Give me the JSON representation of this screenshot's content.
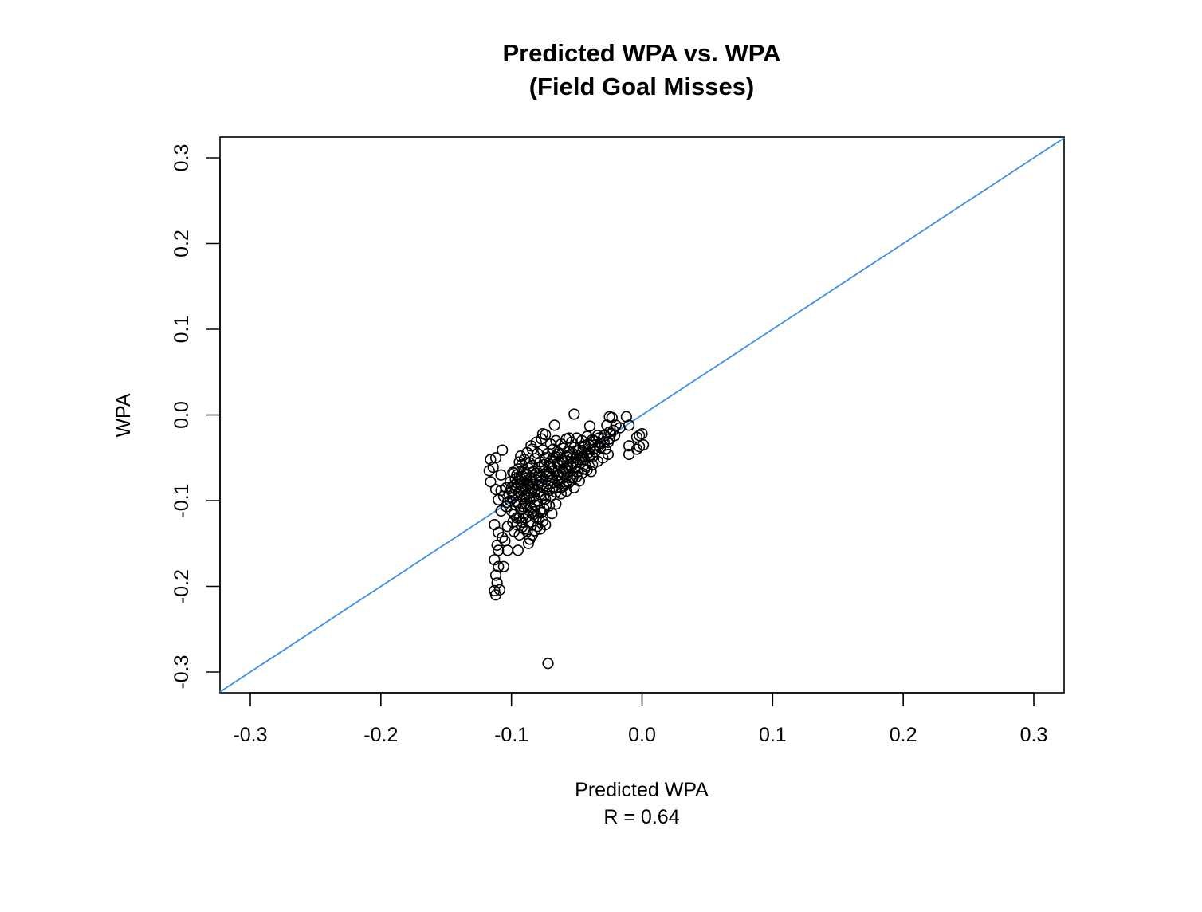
{
  "chart_data": {
    "type": "scatter",
    "title": "Predicted WPA vs. WPA",
    "subtitle": "(Field Goal Misses)",
    "xlabel": "Predicted WPA",
    "xlabel_note": "R = 0.64",
    "ylabel": "WPA",
    "xlim": [
      -0.3,
      0.3
    ],
    "ylim": [
      -0.3,
      0.3
    ],
    "x_ticks": [
      "-0.3",
      "-0.2",
      "-0.1",
      "0.0",
      "0.1",
      "0.2",
      "0.3"
    ],
    "y_ticks": [
      "-0.3",
      "-0.2",
      "-0.1",
      "0.0",
      "0.1",
      "0.2",
      "0.3"
    ],
    "grid": false,
    "reference_line": {
      "slope": 1,
      "intercept": 0,
      "color": "#3a8ee6"
    },
    "marker_color": "#000000",
    "points": [
      [
        -0.072,
        -0.29
      ],
      [
        -0.112,
        -0.21
      ],
      [
        -0.113,
        -0.205
      ],
      [
        -0.109,
        -0.204
      ],
      [
        -0.111,
        -0.196
      ],
      [
        -0.112,
        -0.187
      ],
      [
        -0.11,
        -0.177
      ],
      [
        -0.106,
        -0.177
      ],
      [
        -0.113,
        -0.169
      ],
      [
        -0.11,
        -0.158
      ],
      [
        -0.103,
        -0.158
      ],
      [
        -0.095,
        -0.158
      ],
      [
        -0.111,
        -0.152
      ],
      [
        -0.105,
        -0.147
      ],
      [
        -0.087,
        -0.15
      ],
      [
        -0.113,
        -0.128
      ],
      [
        -0.11,
        -0.137
      ],
      [
        -0.107,
        -0.143
      ],
      [
        -0.103,
        -0.13
      ],
      [
        -0.098,
        -0.136
      ],
      [
        -0.094,
        -0.14
      ],
      [
        -0.09,
        -0.133
      ],
      [
        -0.086,
        -0.145
      ],
      [
        -0.082,
        -0.135
      ],
      [
        -0.078,
        -0.133
      ],
      [
        -0.074,
        -0.128
      ],
      [
        -0.099,
        -0.125
      ],
      [
        -0.096,
        -0.12
      ],
      [
        -0.092,
        -0.125
      ],
      [
        -0.089,
        -0.12
      ],
      [
        -0.085,
        -0.125
      ],
      [
        -0.081,
        -0.12
      ],
      [
        -0.077,
        -0.114
      ],
      [
        -0.073,
        -0.104
      ],
      [
        -0.069,
        -0.115
      ],
      [
        -0.066,
        -0.104
      ],
      [
        -0.108,
        -0.112
      ],
      [
        -0.104,
        -0.107
      ],
      [
        -0.101,
        -0.1
      ],
      [
        -0.097,
        -0.105
      ],
      [
        -0.093,
        -0.11
      ],
      [
        -0.089,
        -0.103
      ],
      [
        -0.085,
        -0.108
      ],
      [
        -0.081,
        -0.1
      ],
      [
        -0.078,
        -0.112
      ],
      [
        -0.11,
        -0.099
      ],
      [
        -0.106,
        -0.095
      ],
      [
        -0.103,
        -0.102
      ],
      [
        -0.099,
        -0.097
      ],
      [
        -0.095,
        -0.093
      ],
      [
        -0.091,
        -0.098
      ],
      [
        -0.087,
        -0.092
      ],
      [
        -0.083,
        -0.096
      ],
      [
        -0.079,
        -0.09
      ],
      [
        -0.075,
        -0.094
      ],
      [
        -0.071,
        -0.088
      ],
      [
        -0.112,
        -0.087
      ],
      [
        -0.108,
        -0.088
      ],
      [
        -0.104,
        -0.085
      ],
      [
        -0.1,
        -0.089
      ],
      [
        -0.096,
        -0.084
      ],
      [
        -0.092,
        -0.088
      ],
      [
        -0.088,
        -0.083
      ],
      [
        -0.084,
        -0.087
      ],
      [
        -0.08,
        -0.082
      ],
      [
        -0.076,
        -0.085
      ],
      [
        -0.072,
        -0.08
      ],
      [
        -0.068,
        -0.084
      ],
      [
        -0.064,
        -0.079
      ],
      [
        -0.06,
        -0.083
      ],
      [
        -0.056,
        -0.079
      ],
      [
        -0.052,
        -0.085
      ],
      [
        -0.048,
        -0.077
      ],
      [
        -0.101,
        -0.078
      ],
      [
        -0.097,
        -0.075
      ],
      [
        -0.093,
        -0.079
      ],
      [
        -0.089,
        -0.074
      ],
      [
        -0.085,
        -0.078
      ],
      [
        -0.081,
        -0.073
      ],
      [
        -0.077,
        -0.077
      ],
      [
        -0.073,
        -0.072
      ],
      [
        -0.069,
        -0.076
      ],
      [
        -0.065,
        -0.071
      ],
      [
        -0.061,
        -0.074
      ],
      [
        -0.057,
        -0.07
      ],
      [
        -0.053,
        -0.068
      ],
      [
        -0.108,
        -0.07
      ],
      [
        -0.116,
        -0.078
      ],
      [
        -0.117,
        -0.065
      ],
      [
        -0.114,
        -0.061
      ],
      [
        -0.116,
        -0.052
      ],
      [
        -0.112,
        -0.05
      ],
      [
        -0.107,
        -0.041
      ],
      [
        -0.099,
        -0.067
      ],
      [
        -0.095,
        -0.063
      ],
      [
        -0.091,
        -0.067
      ],
      [
        -0.087,
        -0.062
      ],
      [
        -0.083,
        -0.066
      ],
      [
        -0.079,
        -0.061
      ],
      [
        -0.075,
        -0.065
      ],
      [
        -0.071,
        -0.06
      ],
      [
        -0.067,
        -0.064
      ],
      [
        -0.063,
        -0.059
      ],
      [
        -0.059,
        -0.062
      ],
      [
        -0.055,
        -0.058
      ],
      [
        -0.051,
        -0.061
      ],
      [
        -0.047,
        -0.056
      ],
      [
        -0.043,
        -0.06
      ],
      [
        -0.039,
        -0.066
      ],
      [
        -0.094,
        -0.055
      ],
      [
        -0.09,
        -0.052
      ],
      [
        -0.086,
        -0.056
      ],
      [
        -0.082,
        -0.051
      ],
      [
        -0.078,
        -0.055
      ],
      [
        -0.074,
        -0.05
      ],
      [
        -0.07,
        -0.054
      ],
      [
        -0.066,
        -0.049
      ],
      [
        -0.062,
        -0.052
      ],
      [
        -0.058,
        -0.048
      ],
      [
        -0.054,
        -0.051
      ],
      [
        -0.05,
        -0.047
      ],
      [
        -0.046,
        -0.05
      ],
      [
        -0.042,
        -0.045
      ],
      [
        -0.038,
        -0.049
      ],
      [
        -0.036,
        -0.043
      ],
      [
        -0.093,
        -0.048
      ],
      [
        -0.088,
        -0.044
      ],
      [
        -0.084,
        -0.04
      ],
      [
        -0.08,
        -0.045
      ],
      [
        -0.076,
        -0.041
      ],
      [
        -0.072,
        -0.045
      ],
      [
        -0.068,
        -0.04
      ],
      [
        -0.064,
        -0.044
      ],
      [
        -0.06,
        -0.039
      ],
      [
        -0.056,
        -0.043
      ],
      [
        -0.052,
        -0.038
      ],
      [
        -0.048,
        -0.041
      ],
      [
        -0.044,
        -0.036
      ],
      [
        -0.04,
        -0.04
      ],
      [
        -0.036,
        -0.035
      ],
      [
        -0.032,
        -0.038
      ],
      [
        -0.085,
        -0.036
      ],
      [
        -0.081,
        -0.032
      ],
      [
        -0.077,
        -0.028
      ],
      [
        -0.074,
        -0.023
      ],
      [
        -0.076,
        -0.022
      ],
      [
        -0.07,
        -0.034
      ],
      [
        -0.066,
        -0.03
      ],
      [
        -0.062,
        -0.034
      ],
      [
        -0.058,
        -0.028
      ],
      [
        -0.054,
        -0.032
      ],
      [
        -0.05,
        -0.027
      ],
      [
        -0.046,
        -0.03
      ],
      [
        -0.042,
        -0.025
      ],
      [
        -0.038,
        -0.029
      ],
      [
        -0.034,
        -0.024
      ],
      [
        -0.03,
        -0.028
      ],
      [
        -0.028,
        -0.04
      ],
      [
        -0.026,
        -0.032
      ],
      [
        -0.024,
        -0.022
      ],
      [
        -0.022,
        -0.018
      ],
      [
        -0.027,
        -0.012
      ],
      [
        -0.025,
        -0.002
      ],
      [
        -0.023,
        -0.003
      ],
      [
        -0.02,
        -0.012
      ],
      [
        -0.017,
        -0.015
      ],
      [
        -0.012,
        -0.002
      ],
      [
        -0.01,
        -0.012
      ],
      [
        -0.067,
        -0.012
      ],
      [
        -0.056,
        -0.027
      ],
      [
        -0.052,
        0.001
      ],
      [
        -0.04,
        -0.013
      ],
      [
        -0.01,
        -0.046
      ],
      [
        -0.01,
        -0.036
      ],
      [
        -0.004,
        -0.026
      ],
      [
        -0.002,
        -0.024
      ],
      [
        0.0,
        -0.022
      ],
      [
        -0.002,
        -0.037
      ],
      [
        0.001,
        -0.035
      ],
      [
        -0.004,
        -0.04
      ],
      [
        -0.032,
        -0.033
      ],
      [
        -0.044,
        -0.063
      ],
      [
        -0.049,
        -0.066
      ],
      [
        -0.053,
        -0.073
      ],
      [
        -0.058,
        -0.089
      ],
      [
        -0.062,
        -0.092
      ],
      [
        -0.066,
        -0.085
      ],
      [
        -0.06,
        -0.068
      ],
      [
        -0.055,
        -0.073
      ],
      [
        -0.064,
        -0.07
      ],
      [
        -0.071,
        -0.068
      ],
      [
        -0.075,
        -0.058
      ],
      [
        -0.079,
        -0.07
      ],
      [
        -0.084,
        -0.059
      ],
      [
        -0.088,
        -0.07
      ],
      [
        -0.092,
        -0.058
      ],
      [
        -0.096,
        -0.07
      ],
      [
        -0.098,
        -0.082
      ],
      [
        -0.094,
        -0.09
      ],
      [
        -0.09,
        -0.095
      ],
      [
        -0.086,
        -0.1
      ],
      [
        -0.082,
        -0.105
      ],
      [
        -0.091,
        -0.115
      ],
      [
        -0.087,
        -0.118
      ],
      [
        -0.083,
        -0.113
      ],
      [
        -0.1,
        -0.112
      ],
      [
        -0.102,
        -0.092
      ],
      [
        -0.098,
        -0.068
      ],
      [
        -0.094,
        -0.072
      ],
      [
        -0.09,
        -0.078
      ],
      [
        -0.086,
        -0.082
      ],
      [
        -0.082,
        -0.088
      ],
      [
        -0.078,
        -0.093
      ],
      [
        -0.074,
        -0.098
      ],
      [
        -0.07,
        -0.095
      ],
      [
        -0.066,
        -0.09
      ],
      [
        -0.062,
        -0.085
      ],
      [
        -0.058,
        -0.08
      ],
      [
        -0.054,
        -0.076
      ],
      [
        -0.05,
        -0.072
      ],
      [
        -0.046,
        -0.068
      ],
      [
        -0.042,
        -0.064
      ],
      [
        -0.038,
        -0.058
      ],
      [
        -0.034,
        -0.054
      ],
      [
        -0.03,
        -0.05
      ],
      [
        -0.026,
        -0.046
      ],
      [
        -0.097,
        -0.086
      ],
      [
        -0.093,
        -0.081
      ],
      [
        -0.089,
        -0.086
      ],
      [
        -0.085,
        -0.091
      ],
      [
        -0.081,
        -0.076
      ],
      [
        -0.077,
        -0.081
      ],
      [
        -0.073,
        -0.087
      ],
      [
        -0.069,
        -0.072
      ],
      [
        -0.065,
        -0.077
      ],
      [
        -0.061,
        -0.066
      ],
      [
        -0.057,
        -0.061
      ],
      [
        -0.053,
        -0.056
      ],
      [
        -0.049,
        -0.052
      ],
      [
        -0.045,
        -0.048
      ],
      [
        -0.041,
        -0.044
      ],
      [
        -0.037,
        -0.04
      ],
      [
        -0.033,
        -0.036
      ],
      [
        -0.029,
        -0.032
      ],
      [
        -0.025,
        -0.028
      ],
      [
        -0.021,
        -0.024
      ],
      [
        -0.095,
        -0.102
      ],
      [
        -0.091,
        -0.107
      ],
      [
        -0.087,
        -0.111
      ],
      [
        -0.083,
        -0.116
      ],
      [
        -0.079,
        -0.121
      ],
      [
        -0.075,
        -0.11
      ],
      [
        -0.071,
        -0.106
      ],
      [
        -0.096,
        -0.128
      ],
      [
        -0.092,
        -0.131
      ],
      [
        -0.088,
        -0.136
      ],
      [
        -0.084,
        -0.14
      ],
      [
        -0.08,
        -0.13
      ],
      [
        -0.076,
        -0.124
      ],
      [
        -0.098,
        -0.116
      ],
      [
        -0.094,
        -0.12
      ],
      [
        -0.09,
        -0.104
      ],
      [
        -0.086,
        -0.096
      ],
      [
        -0.093,
        -0.074
      ],
      [
        -0.089,
        -0.069
      ],
      [
        -0.085,
        -0.073
      ],
      [
        -0.081,
        -0.068
      ],
      [
        -0.077,
        -0.072
      ],
      [
        -0.073,
        -0.067
      ],
      [
        -0.069,
        -0.062
      ],
      [
        -0.065,
        -0.057
      ],
      [
        -0.061,
        -0.053
      ],
      [
        -0.057,
        -0.049
      ],
      [
        -0.053,
        -0.045
      ],
      [
        -0.049,
        -0.042
      ],
      [
        -0.045,
        -0.038
      ],
      [
        -0.041,
        -0.034
      ],
      [
        -0.037,
        -0.03
      ],
      [
        -0.033,
        -0.027
      ],
      [
        -0.029,
        -0.024
      ],
      [
        -0.025,
        -0.02
      ],
      [
        -0.07,
        -0.058
      ],
      [
        -0.068,
        -0.05
      ],
      [
        -0.064,
        -0.046
      ],
      [
        -0.06,
        -0.056
      ],
      [
        -0.056,
        -0.066
      ],
      [
        -0.054,
        -0.06
      ],
      [
        -0.05,
        -0.055
      ],
      [
        -0.046,
        -0.044
      ],
      [
        -0.044,
        -0.052
      ],
      [
        -0.04,
        -0.048
      ],
      [
        -0.1,
        -0.085
      ],
      [
        -0.096,
        -0.079
      ],
      [
        -0.092,
        -0.083
      ],
      [
        -0.088,
        -0.077
      ],
      [
        -0.084,
        -0.081
      ]
    ]
  }
}
